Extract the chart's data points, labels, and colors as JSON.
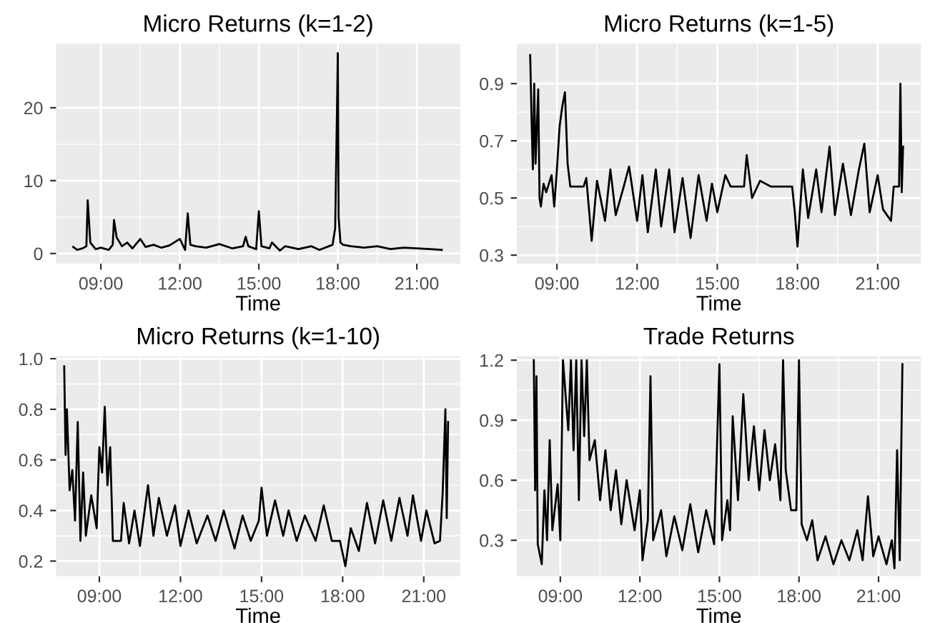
{
  "chart_data": [
    {
      "type": "line",
      "title": "Micro Returns (k=1-2)",
      "xlabel": "Time",
      "grid": true,
      "legend": false,
      "xlim": [
        7.3,
        22.65
      ],
      "xticks": [
        {
          "value": 9,
          "label": "09:00"
        },
        {
          "value": 12,
          "label": "12:00"
        },
        {
          "value": 15,
          "label": "15:00"
        },
        {
          "value": 18,
          "label": "18:00"
        },
        {
          "value": 21,
          "label": "21:00"
        }
      ],
      "ylim": [
        -1.4,
        28.8
      ],
      "yticks": [
        0,
        10,
        20
      ],
      "series": [
        {
          "color": "#000000",
          "x": [
            7.95,
            8.1,
            8.3,
            8.45,
            8.5,
            8.6,
            8.8,
            9.0,
            9.3,
            9.45,
            9.5,
            9.6,
            9.8,
            10.0,
            10.2,
            10.5,
            10.7,
            11.0,
            11.3,
            11.6,
            12.0,
            12.2,
            12.3,
            12.4,
            12.6,
            13.0,
            13.5,
            14.0,
            14.4,
            14.5,
            14.6,
            14.9,
            15.0,
            15.1,
            15.4,
            15.5,
            15.8,
            16.0,
            16.5,
            17.0,
            17.3,
            17.8,
            17.9,
            17.97,
            18.0,
            18.03,
            18.1,
            18.2,
            18.5,
            19.0,
            19.5,
            20.0,
            20.5,
            21.0,
            21.5,
            21.95
          ],
          "values": [
            0.9,
            0.5,
            0.7,
            1.0,
            7.3,
            1.5,
            0.6,
            0.8,
            0.5,
            1.2,
            4.6,
            2.2,
            1.0,
            1.5,
            0.7,
            2.0,
            0.9,
            1.2,
            0.8,
            1.1,
            2.0,
            0.5,
            5.5,
            1.2,
            1.0,
            0.8,
            1.3,
            0.7,
            1.0,
            2.3,
            1.0,
            0.6,
            5.8,
            1.0,
            0.7,
            1.5,
            0.4,
            1.0,
            0.6,
            1.0,
            0.5,
            1.2,
            3.5,
            20.0,
            27.5,
            5.0,
            1.5,
            1.2,
            1.0,
            0.8,
            1.0,
            0.6,
            0.8,
            0.7,
            0.6,
            0.5
          ]
        }
      ]
    },
    {
      "type": "line",
      "title": "Micro Returns (k=1-5)",
      "xlabel": "Time",
      "grid": true,
      "legend": false,
      "xlim": [
        7.5,
        22.62
      ],
      "xticks": [
        {
          "value": 9,
          "label": "09:00"
        },
        {
          "value": 12,
          "label": "12:00"
        },
        {
          "value": 15,
          "label": "15:00"
        },
        {
          "value": 18,
          "label": "18:00"
        },
        {
          "value": 21,
          "label": "21:00"
        }
      ],
      "ylim": [
        0.27,
        1.04
      ],
      "yticks": [
        0.3,
        0.5,
        0.7,
        0.9
      ],
      "series": [
        {
          "color": "#000000",
          "x": [
            8.0,
            8.05,
            8.1,
            8.15,
            8.2,
            8.3,
            8.35,
            8.4,
            8.5,
            8.6,
            8.8,
            8.9,
            9.0,
            9.1,
            9.2,
            9.3,
            9.4,
            9.5,
            10.0,
            10.1,
            10.3,
            10.5,
            10.8,
            11.0,
            11.2,
            11.5,
            11.7,
            12.0,
            12.2,
            12.4,
            12.7,
            12.9,
            13.2,
            13.4,
            13.7,
            14.0,
            14.3,
            14.6,
            14.8,
            15.0,
            15.3,
            15.5,
            16.0,
            16.1,
            16.3,
            16.6,
            17.0,
            17.8,
            17.9,
            18.0,
            18.2,
            18.4,
            18.7,
            18.9,
            19.2,
            19.4,
            19.7,
            20.0,
            20.3,
            20.5,
            20.7,
            21.0,
            21.2,
            21.5,
            21.6,
            21.8,
            21.85,
            21.9,
            21.95
          ],
          "values": [
            1.0,
            0.78,
            0.6,
            0.9,
            0.62,
            0.88,
            0.5,
            0.47,
            0.55,
            0.52,
            0.58,
            0.47,
            0.6,
            0.75,
            0.82,
            0.87,
            0.62,
            0.54,
            0.54,
            0.57,
            0.35,
            0.56,
            0.42,
            0.6,
            0.44,
            0.54,
            0.61,
            0.42,
            0.58,
            0.38,
            0.6,
            0.4,
            0.6,
            0.38,
            0.57,
            0.36,
            0.58,
            0.42,
            0.55,
            0.45,
            0.58,
            0.54,
            0.54,
            0.65,
            0.5,
            0.56,
            0.54,
            0.54,
            0.45,
            0.33,
            0.6,
            0.43,
            0.6,
            0.45,
            0.68,
            0.44,
            0.62,
            0.44,
            0.6,
            0.69,
            0.45,
            0.58,
            0.46,
            0.42,
            0.54,
            0.54,
            0.9,
            0.52,
            0.68
          ]
        }
      ]
    },
    {
      "type": "line",
      "title": "Micro Returns (k=1-10)",
      "xlabel": "Time",
      "grid": true,
      "legend": false,
      "xlim": [
        7.4,
        22.35
      ],
      "xticks": [
        {
          "value": 9,
          "label": "09:00"
        },
        {
          "value": 12,
          "label": "12:00"
        },
        {
          "value": 15,
          "label": "15:00"
        },
        {
          "value": 18,
          "label": "18:00"
        },
        {
          "value": 21,
          "label": "21:00"
        }
      ],
      "ylim": [
        0.14,
        1.01
      ],
      "yticks": [
        0.2,
        0.4,
        0.6,
        0.8,
        {
          "value": 1.0,
          "label": "1.0"
        }
      ],
      "series": [
        {
          "color": "#000000",
          "x": [
            7.7,
            7.75,
            7.8,
            7.9,
            8.0,
            8.1,
            8.2,
            8.3,
            8.4,
            8.5,
            8.7,
            8.9,
            9.0,
            9.1,
            9.2,
            9.3,
            9.4,
            9.5,
            9.8,
            9.9,
            10.1,
            10.3,
            10.5,
            10.8,
            11.0,
            11.2,
            11.5,
            11.8,
            12.0,
            12.3,
            12.6,
            13.0,
            13.3,
            13.6,
            14.0,
            14.3,
            14.6,
            14.9,
            15.0,
            15.2,
            15.5,
            15.8,
            16.0,
            16.3,
            16.6,
            17.0,
            17.3,
            17.6,
            17.9,
            18.1,
            18.3,
            18.6,
            18.9,
            19.2,
            19.5,
            19.8,
            20.1,
            20.4,
            20.6,
            20.9,
            21.1,
            21.4,
            21.6,
            21.7,
            21.8,
            21.85,
            21.9
          ],
          "values": [
            0.97,
            0.62,
            0.8,
            0.48,
            0.56,
            0.36,
            0.75,
            0.28,
            0.55,
            0.3,
            0.46,
            0.33,
            0.65,
            0.55,
            0.81,
            0.5,
            0.65,
            0.28,
            0.28,
            0.43,
            0.27,
            0.4,
            0.26,
            0.5,
            0.3,
            0.45,
            0.3,
            0.42,
            0.26,
            0.4,
            0.27,
            0.38,
            0.28,
            0.4,
            0.25,
            0.38,
            0.28,
            0.36,
            0.49,
            0.3,
            0.44,
            0.3,
            0.4,
            0.28,
            0.38,
            0.28,
            0.42,
            0.28,
            0.28,
            0.18,
            0.33,
            0.24,
            0.43,
            0.27,
            0.44,
            0.28,
            0.45,
            0.3,
            0.46,
            0.28,
            0.4,
            0.27,
            0.28,
            0.47,
            0.8,
            0.37,
            0.75
          ]
        }
      ]
    },
    {
      "type": "line",
      "title": "Trade Returns",
      "xlabel": "Time",
      "grid": true,
      "legend": false,
      "xlim": [
        7.36,
        22.6
      ],
      "xticks": [
        {
          "value": 9,
          "label": "09:00"
        },
        {
          "value": 12,
          "label": "12:00"
        },
        {
          "value": 15,
          "label": "15:00"
        },
        {
          "value": 18,
          "label": "18:00"
        },
        {
          "value": 21,
          "label": "21:00"
        }
      ],
      "ylim": [
        0.12,
        1.22
      ],
      "yticks": [
        0.3,
        0.6,
        0.9,
        1.2
      ],
      "series": [
        {
          "color": "#000000",
          "x": [
            8.0,
            8.05,
            8.1,
            8.15,
            8.3,
            8.4,
            8.5,
            8.6,
            8.7,
            8.9,
            9.0,
            9.1,
            9.3,
            9.4,
            9.5,
            9.6,
            9.7,
            9.8,
            9.9,
            10.0,
            10.1,
            10.3,
            10.5,
            10.7,
            10.9,
            11.1,
            11.3,
            11.5,
            11.8,
            12.0,
            12.1,
            12.3,
            12.4,
            12.5,
            12.8,
            13.0,
            13.3,
            13.6,
            13.9,
            14.2,
            14.5,
            14.8,
            15.0,
            15.1,
            15.3,
            15.4,
            15.5,
            15.7,
            15.9,
            16.1,
            16.3,
            16.5,
            16.7,
            16.9,
            17.1,
            17.3,
            17.4,
            17.5,
            17.7,
            17.9,
            18.0,
            18.1,
            18.3,
            18.5,
            18.7,
            19.0,
            19.3,
            19.6,
            19.9,
            20.2,
            20.4,
            20.6,
            20.8,
            21.0,
            21.3,
            21.5,
            21.6,
            21.7,
            21.8,
            21.9
          ],
          "values": [
            1.2,
            0.55,
            1.12,
            0.28,
            0.18,
            0.55,
            0.3,
            0.8,
            0.35,
            0.58,
            0.3,
            1.2,
            0.85,
            1.2,
            0.75,
            1.2,
            0.5,
            1.2,
            0.82,
            1.2,
            0.7,
            0.8,
            0.5,
            0.75,
            0.45,
            0.65,
            0.38,
            0.6,
            0.35,
            0.55,
            0.2,
            0.4,
            1.12,
            0.3,
            0.45,
            0.22,
            0.42,
            0.25,
            0.48,
            0.24,
            0.45,
            0.28,
            1.18,
            0.3,
            0.5,
            0.35,
            0.92,
            0.5,
            1.03,
            0.6,
            0.87,
            0.55,
            0.85,
            0.6,
            0.78,
            0.5,
            1.2,
            0.65,
            0.45,
            0.45,
            1.2,
            0.38,
            0.3,
            0.4,
            0.2,
            0.32,
            0.18,
            0.3,
            0.2,
            0.35,
            0.2,
            0.52,
            0.22,
            0.32,
            0.18,
            0.3,
            0.16,
            0.75,
            0.2,
            1.18
          ]
        }
      ]
    }
  ]
}
